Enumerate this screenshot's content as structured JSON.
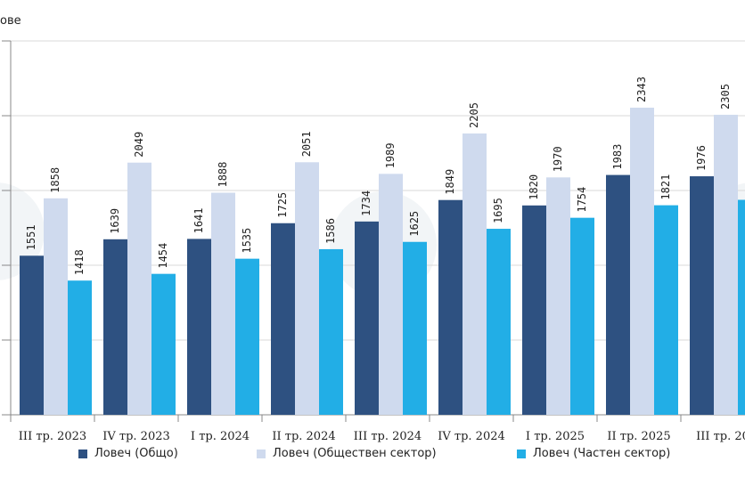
{
  "unit_label": "ове",
  "colors": {
    "total": "#2e5181",
    "public": "#cfdaee",
    "private": "#22aee6",
    "grid": "#d9d9d9",
    "axis": "#888888",
    "text": "#222222"
  },
  "legend": [
    {
      "label": "Ловеч (Общо)",
      "color": "#2e5181"
    },
    {
      "label": "Ловеч (Обществен сектор)",
      "color": "#cfdaee"
    },
    {
      "label": "Ловеч (Частен сектор)",
      "color": "#22aee6"
    }
  ],
  "chart_data": {
    "type": "bar",
    "title": "",
    "xlabel": "",
    "ylabel": "ове",
    "ylim": [
      700,
      2700
    ],
    "categories": [
      "III тр. 2023",
      "IV тр. 2023",
      "I тр. 2024",
      "II тр. 2024",
      "III тр. 2024",
      "IV тр. 2024",
      "I тр. 2025",
      "II тр. 2025",
      "III тр. 20"
    ],
    "series": [
      {
        "name": "Ловеч (Общо)",
        "values": [
          1551,
          1639,
          1641,
          1725,
          1734,
          1849,
          1820,
          1983,
          1976
        ]
      },
      {
        "name": "Ловеч (Обществен сектор)",
        "values": [
          1858,
          2049,
          1888,
          2051,
          1989,
          2205,
          1970,
          2343,
          2305
        ]
      },
      {
        "name": "Ловеч (Частен сектор)",
        "values": [
          1418,
          1454,
          1535,
          1586,
          1625,
          1695,
          1754,
          1821,
          1850
        ]
      }
    ],
    "data_labels": [
      [
        "1551",
        "1858",
        "1418"
      ],
      [
        "1639",
        "2049",
        "1454"
      ],
      [
        "1641",
        "1888",
        "1535"
      ],
      [
        "1725",
        "2051",
        "1586"
      ],
      [
        "1734",
        "1989",
        "1625"
      ],
      [
        "1849",
        "2205",
        "1695"
      ],
      [
        "1820",
        "1970",
        "1754"
      ],
      [
        "1983",
        "2343",
        "1821"
      ],
      [
        "1976",
        "2305",
        ""
      ]
    ],
    "gridlines": true,
    "legend_position": "bottom"
  }
}
